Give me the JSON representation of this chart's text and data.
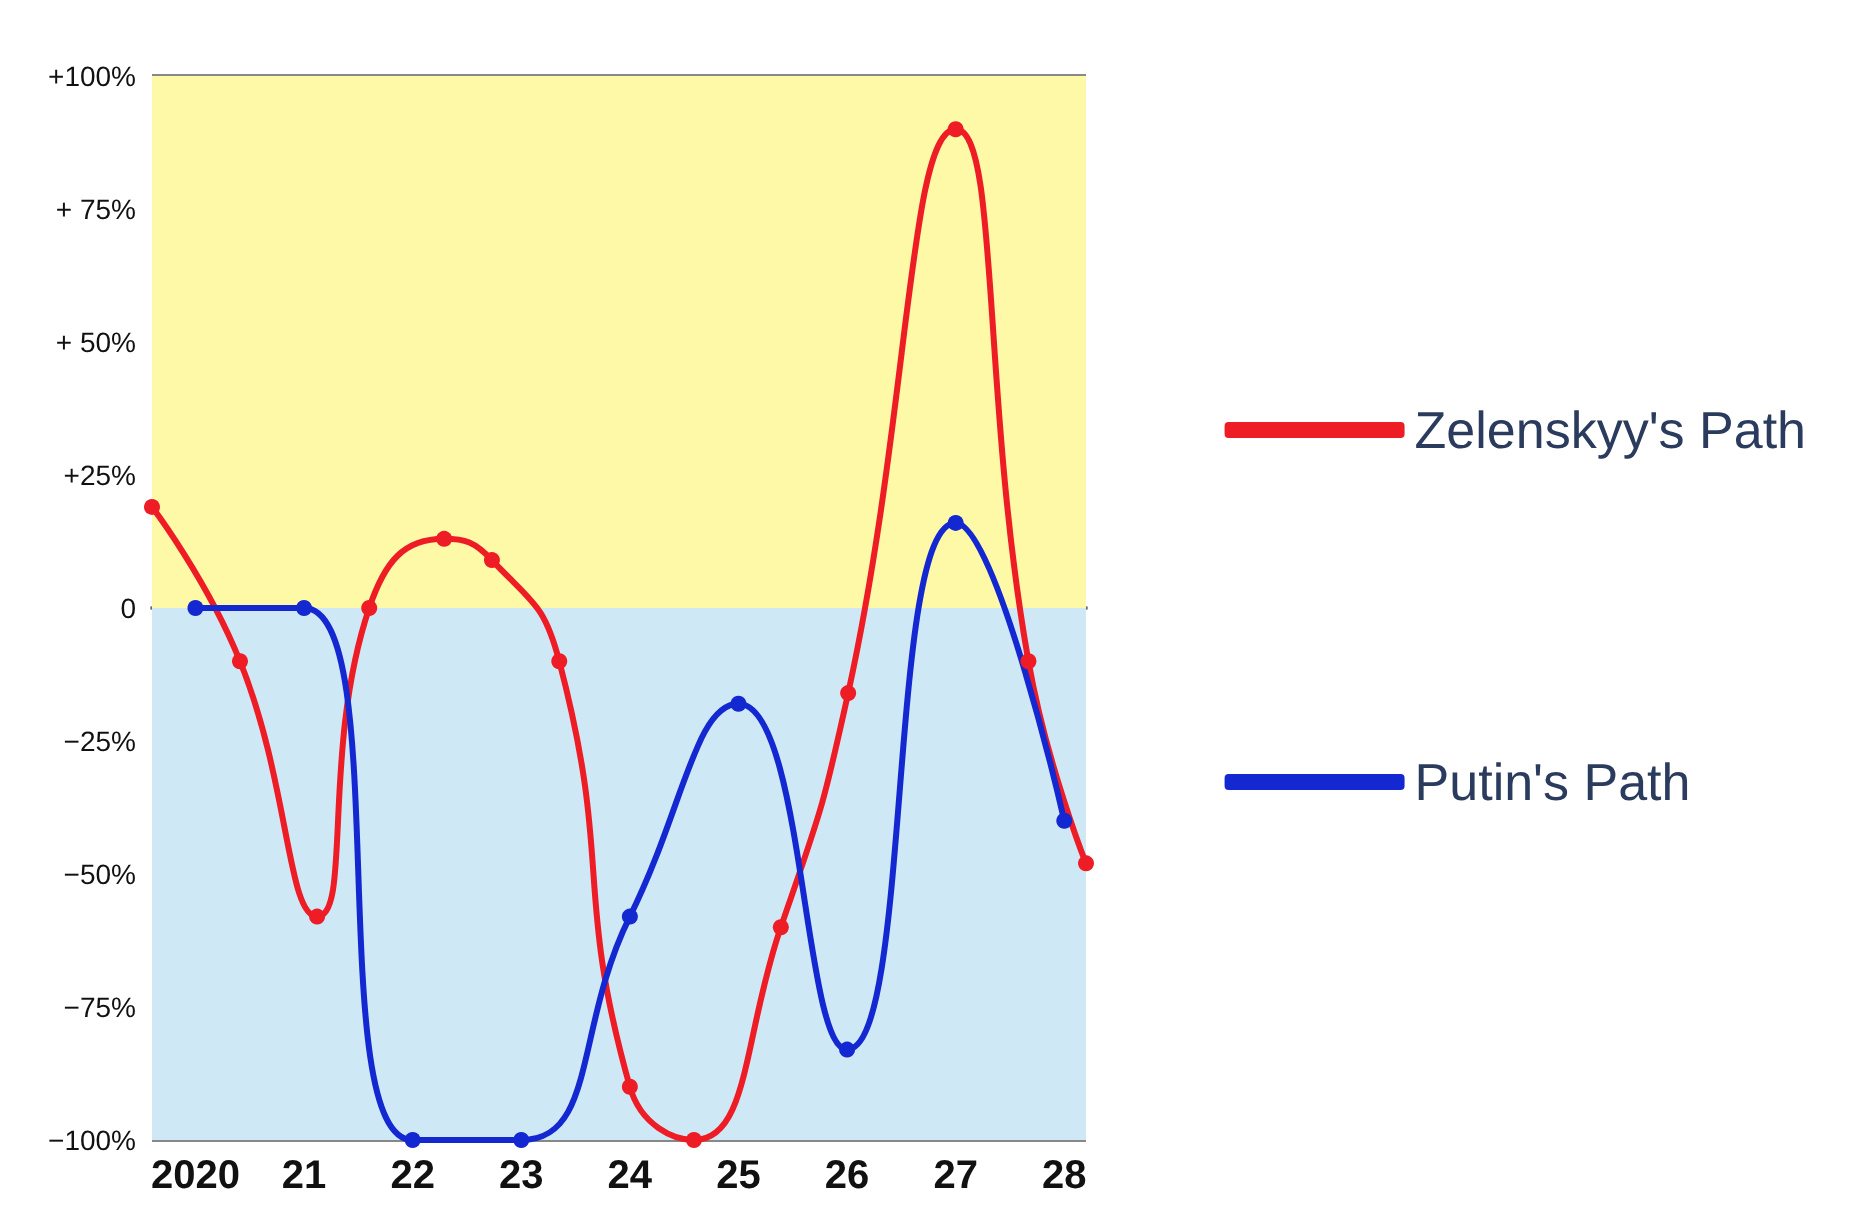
{
  "chart_data": {
    "type": "line",
    "xlim": [
      2019.6,
      2028.2
    ],
    "xticks": [
      {
        "value": 2020,
        "label": "2020"
      },
      {
        "value": 2021,
        "label": "21"
      },
      {
        "value": 2022,
        "label": "22"
      },
      {
        "value": 2023,
        "label": "23"
      },
      {
        "value": 2024,
        "label": "24"
      },
      {
        "value": 2025,
        "label": "25"
      },
      {
        "value": 2026,
        "label": "26"
      },
      {
        "value": 2027,
        "label": "27"
      },
      {
        "value": 2028,
        "label": "28"
      }
    ],
    "ylim": [
      -100,
      100
    ],
    "yticks": [
      {
        "value": -100,
        "label": "−100%"
      },
      {
        "value": -75,
        "label": "−75%"
      },
      {
        "value": -50,
        "label": "−50%"
      },
      {
        "value": -25,
        "label": "−25%"
      },
      {
        "value": 0,
        "label": "0"
      },
      {
        "value": 25,
        "label": "+25%"
      },
      {
        "value": 50,
        "label": "+ 50%"
      },
      {
        "value": 75,
        "label": "+ 75%"
      },
      {
        "value": 100,
        "label": "+100%"
      }
    ],
    "series": [
      {
        "name": "Zelenskyy's Path",
        "color": "#ee1c25",
        "x": [
          2019.6,
          2020.41,
          2021.12,
          2021.6,
          2022.29,
          2022.73,
          2023.35,
          2024.0,
          2024.59,
          2025.39,
          2026.01,
          2027.0,
          2027.67,
          2028.2
        ],
        "values": [
          19,
          -10,
          -58,
          0,
          13,
          9,
          -10,
          -90,
          -100,
          -60,
          -16,
          90,
          -10,
          -48
        ]
      },
      {
        "name": "Putin's Path",
        "color": "#1428d2",
        "x": [
          2020,
          2021,
          2022,
          2023,
          2024,
          2025,
          2026,
          2027,
          2028
        ],
        "values": [
          0,
          0,
          -100,
          -100,
          -58,
          -18,
          -83,
          16,
          -40
        ]
      }
    ],
    "bands": [
      {
        "axis": "y",
        "from": 0,
        "to": 100,
        "color": "#fdf9a6"
      },
      {
        "axis": "y",
        "from": -100,
        "to": 0,
        "color": "#cfe8f6"
      }
    ],
    "grid": "y",
    "legend": "right",
    "marker": "circle",
    "line_style": "solid"
  }
}
